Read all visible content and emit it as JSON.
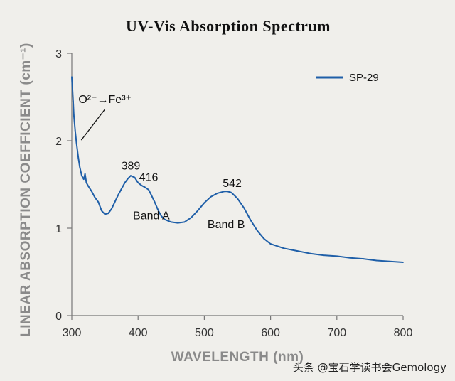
{
  "chart_data": {
    "type": "line",
    "title": "UV-Vis Absorption Spectrum",
    "xlabel": "WAVELENGTH (nm)",
    "ylabel": "LINEAR ABSORPTION COEFFICIENT (cm⁻¹)",
    "xlim": [
      300,
      800
    ],
    "ylim": [
      0,
      3
    ],
    "xticks": [
      "300",
      "400",
      "500",
      "600",
      "700",
      "800"
    ],
    "yticks": [
      "0",
      "1",
      "2",
      "3"
    ],
    "grid": false,
    "legend_position": "top-right",
    "series": [
      {
        "name": "SP-29",
        "color": "#1f5fa8",
        "x": [
          300,
          301,
          302,
          303,
          305,
          307,
          310,
          312,
          315,
          318,
          320,
          322,
          325,
          330,
          335,
          340,
          345,
          350,
          355,
          360,
          365,
          370,
          375,
          380,
          385,
          389,
          395,
          400,
          405,
          410,
          416,
          420,
          425,
          430,
          435,
          440,
          450,
          460,
          470,
          480,
          490,
          500,
          510,
          520,
          530,
          535,
          540,
          542,
          550,
          560,
          570,
          580,
          590,
          600,
          620,
          640,
          660,
          680,
          700,
          720,
          740,
          760,
          780,
          800
        ],
        "y": [
          2.73,
          2.6,
          2.45,
          2.3,
          2.12,
          1.98,
          1.8,
          1.7,
          1.6,
          1.56,
          1.62,
          1.52,
          1.48,
          1.42,
          1.35,
          1.3,
          1.2,
          1.16,
          1.17,
          1.22,
          1.3,
          1.38,
          1.45,
          1.52,
          1.57,
          1.6,
          1.58,
          1.52,
          1.49,
          1.47,
          1.44,
          1.38,
          1.3,
          1.21,
          1.14,
          1.1,
          1.07,
          1.06,
          1.07,
          1.12,
          1.2,
          1.29,
          1.36,
          1.4,
          1.42,
          1.42,
          1.41,
          1.4,
          1.34,
          1.23,
          1.09,
          0.97,
          0.88,
          0.82,
          0.77,
          0.74,
          0.71,
          0.69,
          0.68,
          0.66,
          0.65,
          0.63,
          0.62,
          0.61
        ]
      }
    ],
    "annotations": [
      {
        "text": "O²⁻→Fe³⁺",
        "x": 310,
        "y": 2.43
      },
      {
        "text": "389",
        "x": 389,
        "y": 1.67
      },
      {
        "text": "416",
        "x": 416,
        "y": 1.54
      },
      {
        "text": "542",
        "x": 542,
        "y": 1.47
      },
      {
        "text": "Band A",
        "x": 420,
        "y": 1.1
      },
      {
        "text": "Band B",
        "x": 533,
        "y": 1.0
      }
    ]
  },
  "watermark": "头条 @宝石学读书会Gemology"
}
